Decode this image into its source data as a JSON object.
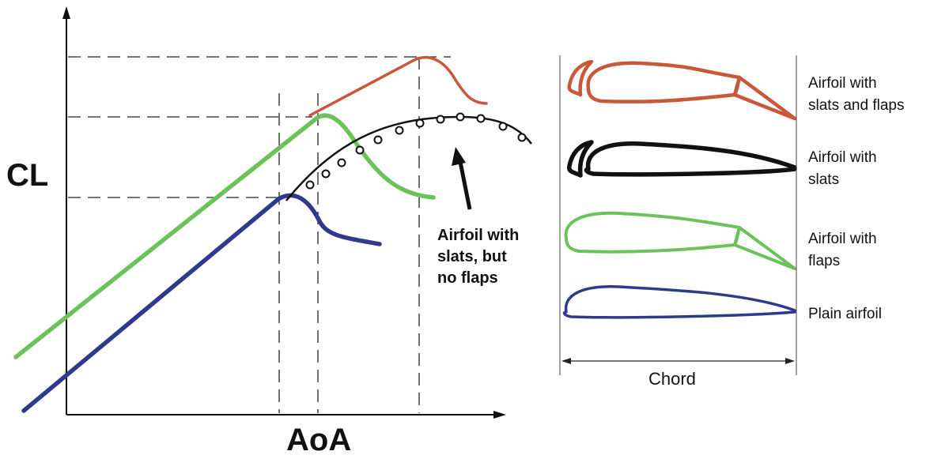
{
  "diagram": {
    "y_axis_label": "CL",
    "x_axis_label": "AoA",
    "annotation": [
      "Airfoil with",
      "slats, but",
      "no flaps"
    ],
    "chord_label": "Chord",
    "colors": {
      "slats_and_flaps": "#c9573a",
      "slats": "#111111",
      "flaps": "#6cc25a",
      "plain": "#2f3a8a"
    },
    "legend": [
      {
        "key": "slats_and_flaps",
        "lines": [
          "Airfoil with",
          "slats and flaps"
        ]
      },
      {
        "key": "slats",
        "lines": [
          "Airfoil with",
          "slats"
        ]
      },
      {
        "key": "flaps",
        "lines": [
          "Airfoil with",
          "flaps"
        ]
      },
      {
        "key": "plain",
        "lines": [
          "Plain airfoil"
        ]
      }
    ]
  }
}
